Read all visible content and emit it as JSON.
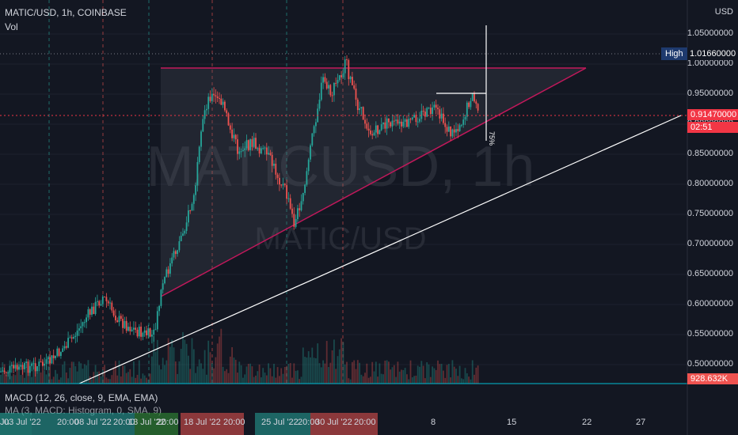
{
  "header": {
    "symbol": "MATIC/USD, 1h, COINBASE",
    "vol": "Vol",
    "watermark": "MATICUSD, 1h",
    "watermark_sub": "MATIC/USD"
  },
  "price_axis": {
    "currency": "USD",
    "ticks": [
      "1.05000000",
      "1.00000000",
      "0.95000000",
      "0.90000000",
      "0.85000000",
      "0.80000000",
      "0.75000000",
      "0.70000000",
      "0.65000000",
      "0.60000000",
      "0.55000000",
      "0.50000000"
    ],
    "high_label": "High",
    "high_value": "1.01660000",
    "current_price": "0.91470000",
    "countdown": "02:51",
    "volume_value": "928.632K"
  },
  "drawing": {
    "percent_label": "75%"
  },
  "indicators": {
    "macd": "MACD (12, 26, close, 9, EMA, EMA)",
    "ma": "MA (3, MACD: Histogram, 0, SMA, 9)"
  },
  "time_axis": {
    "labels": [
      {
        "text": "Ju",
        "x": 0
      },
      {
        "text": "03 Jul '22",
        "x": 5
      },
      {
        "text": "20:00",
        "x": 72
      },
      {
        "text": "08 Jul '22",
        "x": 94
      },
      {
        "text": "20:00",
        "x": 143
      },
      {
        "text": "13 Jul '22",
        "x": 162
      },
      {
        "text": "20:00",
        "x": 198
      },
      {
        "text": "18 Jul '22",
        "x": 232
      },
      {
        "text": "20:00",
        "x": 282
      },
      {
        "text": "25 Jul '22",
        "x": 330
      },
      {
        "text": "20:00",
        "x": 376
      },
      {
        "text": "30 Jul '22",
        "x": 398
      },
      {
        "text": "20:00",
        "x": 447
      },
      {
        "text": "8",
        "x": 544
      },
      {
        "text": "15",
        "x": 640
      },
      {
        "text": "22",
        "x": 735
      },
      {
        "text": "27",
        "x": 803
      }
    ]
  },
  "colors": {
    "up": "#26a69a",
    "down": "#ef5350",
    "pattern_line": "#c2185b",
    "price_line": "#f23645",
    "support_line": "#ffffff"
  }
}
